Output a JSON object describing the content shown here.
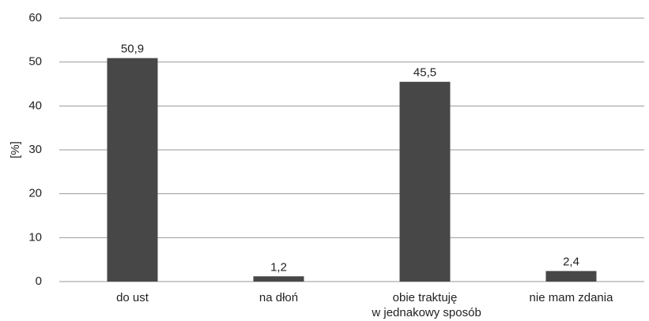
{
  "chart_data": {
    "type": "bar",
    "y_label": "[%]",
    "categories": [
      "do ust",
      "na dłoń",
      "obie traktuję\nw jednakowy sposób",
      "nie mam zdania"
    ],
    "values": [
      50.9,
      1.2,
      45.5,
      2.4
    ],
    "value_labels": [
      "50,9",
      "1,2",
      "45,5",
      "2,4"
    ],
    "color": "#474747",
    "ylim": [
      0,
      60
    ],
    "yticks": [
      0,
      10,
      20,
      30,
      40,
      50,
      60
    ],
    "grid": true
  }
}
